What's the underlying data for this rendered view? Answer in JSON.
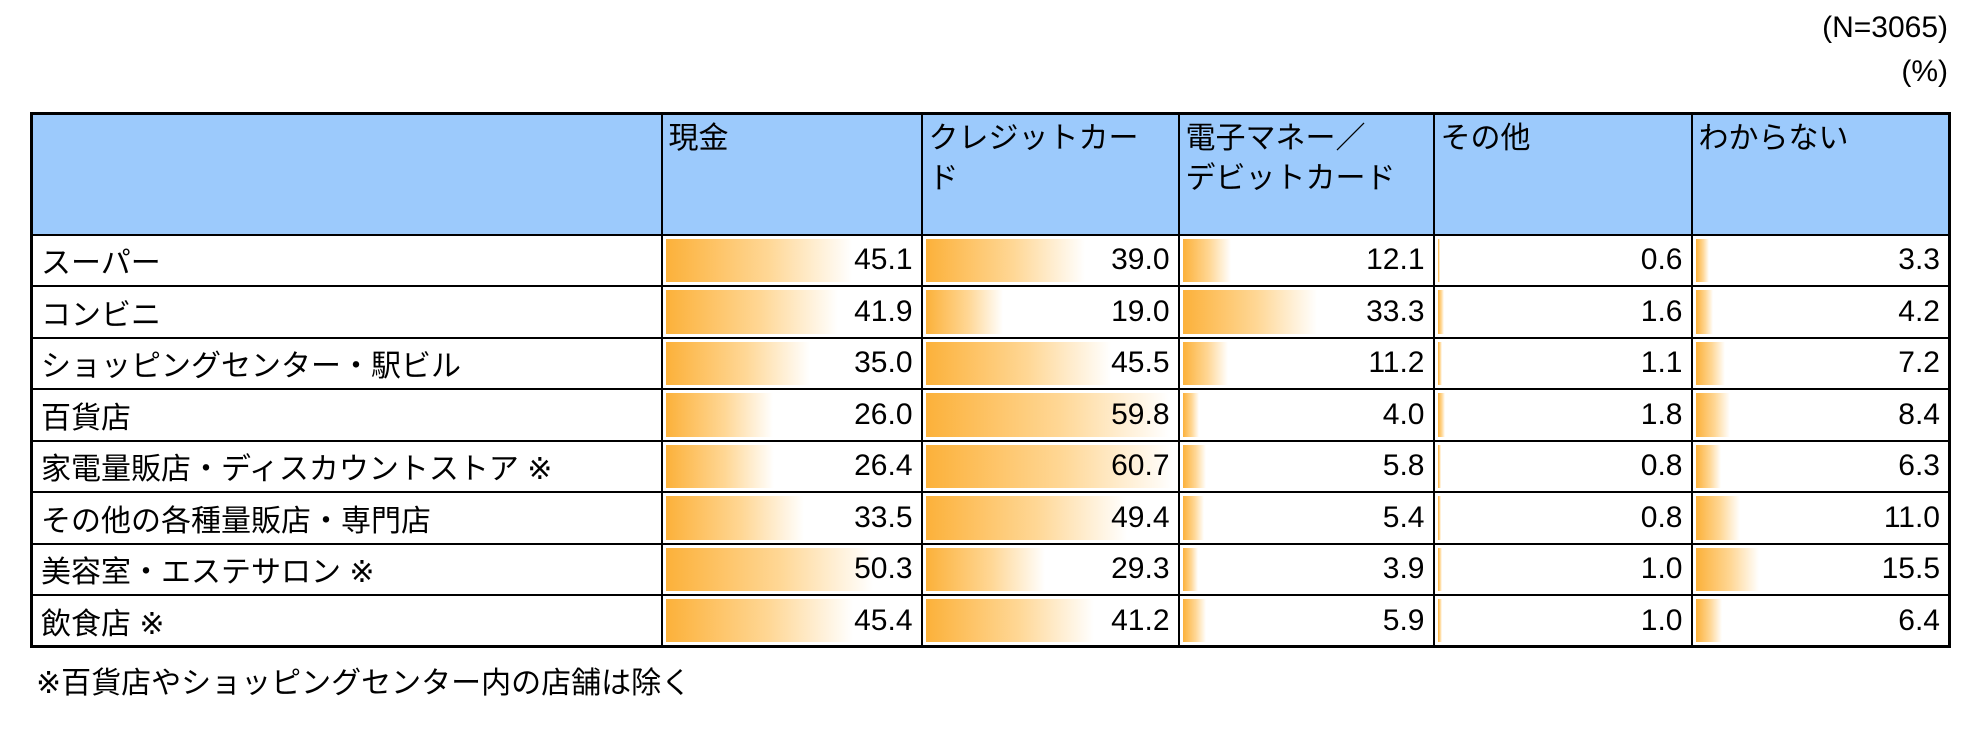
{
  "meta": {
    "sample_size_label": "(N=3065)",
    "unit_label": "(%)"
  },
  "footnote": "※百貨店やショッピングセンター内の店舗は除く",
  "colors": {
    "header_bg": "#9CCAFC",
    "bar_start": "#FCB13A",
    "bar_end": "#FFFFFF",
    "border": "#000000"
  },
  "table": {
    "corner_label": "",
    "columns": [
      "現金",
      "クレジットカー\nド",
      "電子マネー／\nデビットカード",
      "その他",
      "わからない"
    ],
    "rows": [
      {
        "label": "スーパー",
        "values": [
          "45.1",
          "39.0",
          "12.1",
          "0.6",
          "3.3"
        ]
      },
      {
        "label": "コンビニ",
        "values": [
          "41.9",
          "19.0",
          "33.3",
          "1.6",
          "4.2"
        ]
      },
      {
        "label": "ショッピングセンター・駅ビル",
        "values": [
          "35.0",
          "45.5",
          "11.2",
          "1.1",
          "7.2"
        ]
      },
      {
        "label": "百貨店",
        "values": [
          "26.0",
          "59.8",
          "4.0",
          "1.8",
          "8.4"
        ]
      },
      {
        "label": "家電量販店・ディスカウントストア ※",
        "values": [
          "26.4",
          "60.7",
          "5.8",
          "0.8",
          "6.3"
        ]
      },
      {
        "label": "その他の各種量販店・専門店",
        "values": [
          "33.5",
          "49.4",
          "5.4",
          "0.8",
          "11.0"
        ]
      },
      {
        "label": "美容室・エステサロン ※",
        "values": [
          "50.3",
          "29.3",
          "3.9",
          "1.0",
          "15.5"
        ]
      },
      {
        "label": "飲食店 ※",
        "values": [
          "45.4",
          "41.2",
          "5.9",
          "1.0",
          "6.4"
        ]
      }
    ]
  },
  "chart_data": {
    "type": "table",
    "title": "",
    "unit": "%",
    "n": 3065,
    "categories": [
      "スーパー",
      "コンビニ",
      "ショッピングセンター・駅ビル",
      "百貨店",
      "家電量販店・ディスカウントストア ※",
      "その他の各種量販店・専門店",
      "美容室・エステサロン ※",
      "飲食店 ※"
    ],
    "series": [
      {
        "name": "現金",
        "values": [
          45.1,
          41.9,
          35.0,
          26.0,
          26.4,
          33.5,
          50.3,
          45.4
        ]
      },
      {
        "name": "クレジットカード",
        "values": [
          39.0,
          19.0,
          45.5,
          59.8,
          60.7,
          49.4,
          29.3,
          41.2
        ]
      },
      {
        "name": "電子マネー／デビットカード",
        "values": [
          12.1,
          33.3,
          11.2,
          4.0,
          5.8,
          5.4,
          3.9,
          5.9
        ]
      },
      {
        "name": "その他",
        "values": [
          0.6,
          1.6,
          1.1,
          1.8,
          0.8,
          0.8,
          1.0,
          1.0
        ]
      },
      {
        "name": "わからない",
        "values": [
          3.3,
          4.2,
          7.2,
          8.4,
          6.3,
          11.0,
          15.5,
          6.4
        ]
      }
    ],
    "bar_scale_max": 62.5,
    "bar_style": "in-cell horizontal gradient bars, orange fading to white",
    "footnote": "※百貨店やショッピングセンター内の店舗は除く"
  }
}
